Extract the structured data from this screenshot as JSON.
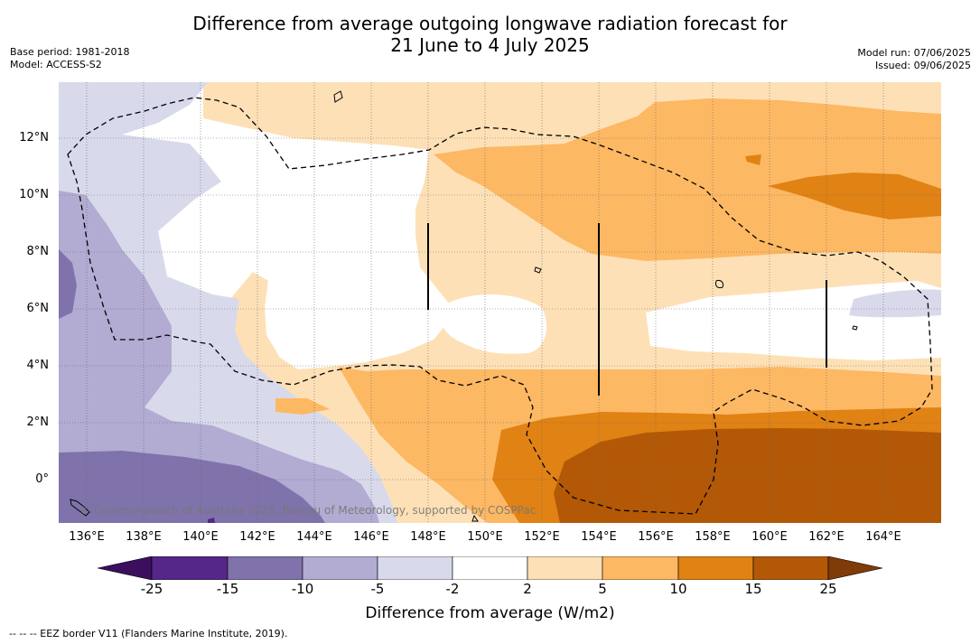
{
  "header": {
    "title_line1": "Difference from average outgoing longwave radiation forecast for",
    "title_line2": "21 June to 4 July 2025",
    "base_period": "Base period: 1981-2018",
    "model": "Model: ACCESS-S2",
    "model_run": "Model run: 07/06/2025",
    "issued": "Issued: 09/06/2025"
  },
  "map": {
    "lat_labels": [
      "12°N",
      "10°N",
      "8°N",
      "6°N",
      "4°N",
      "2°N",
      "0°"
    ],
    "lon_labels": [
      "136°E",
      "138°E",
      "140°E",
      "142°E",
      "144°E",
      "146°E",
      "148°E",
      "150°E",
      "152°E",
      "154°E",
      "156°E",
      "158°E",
      "160°E",
      "162°E",
      "164°E"
    ],
    "copyright": "© Commonwealth of Australia 2025, Bureau of Meteorology, supported by COSPPac"
  },
  "legend": {
    "ticks": [
      "-25",
      "-15",
      "-10",
      "-5",
      "-2",
      "2",
      "5",
      "10",
      "15",
      "25"
    ],
    "colors": [
      "#3b0f5e",
      "#542788",
      "#8073ac",
      "#b2abd2",
      "#d8daeb",
      "#ffffff",
      "#fee0b6",
      "#fdb863",
      "#e08214",
      "#b35806",
      "#7f3b08"
    ],
    "title": "Difference from average (W/m2)",
    "footnote": "-- -- -- EEZ border V11 (Flanders Marine Institute, 2019)."
  }
}
